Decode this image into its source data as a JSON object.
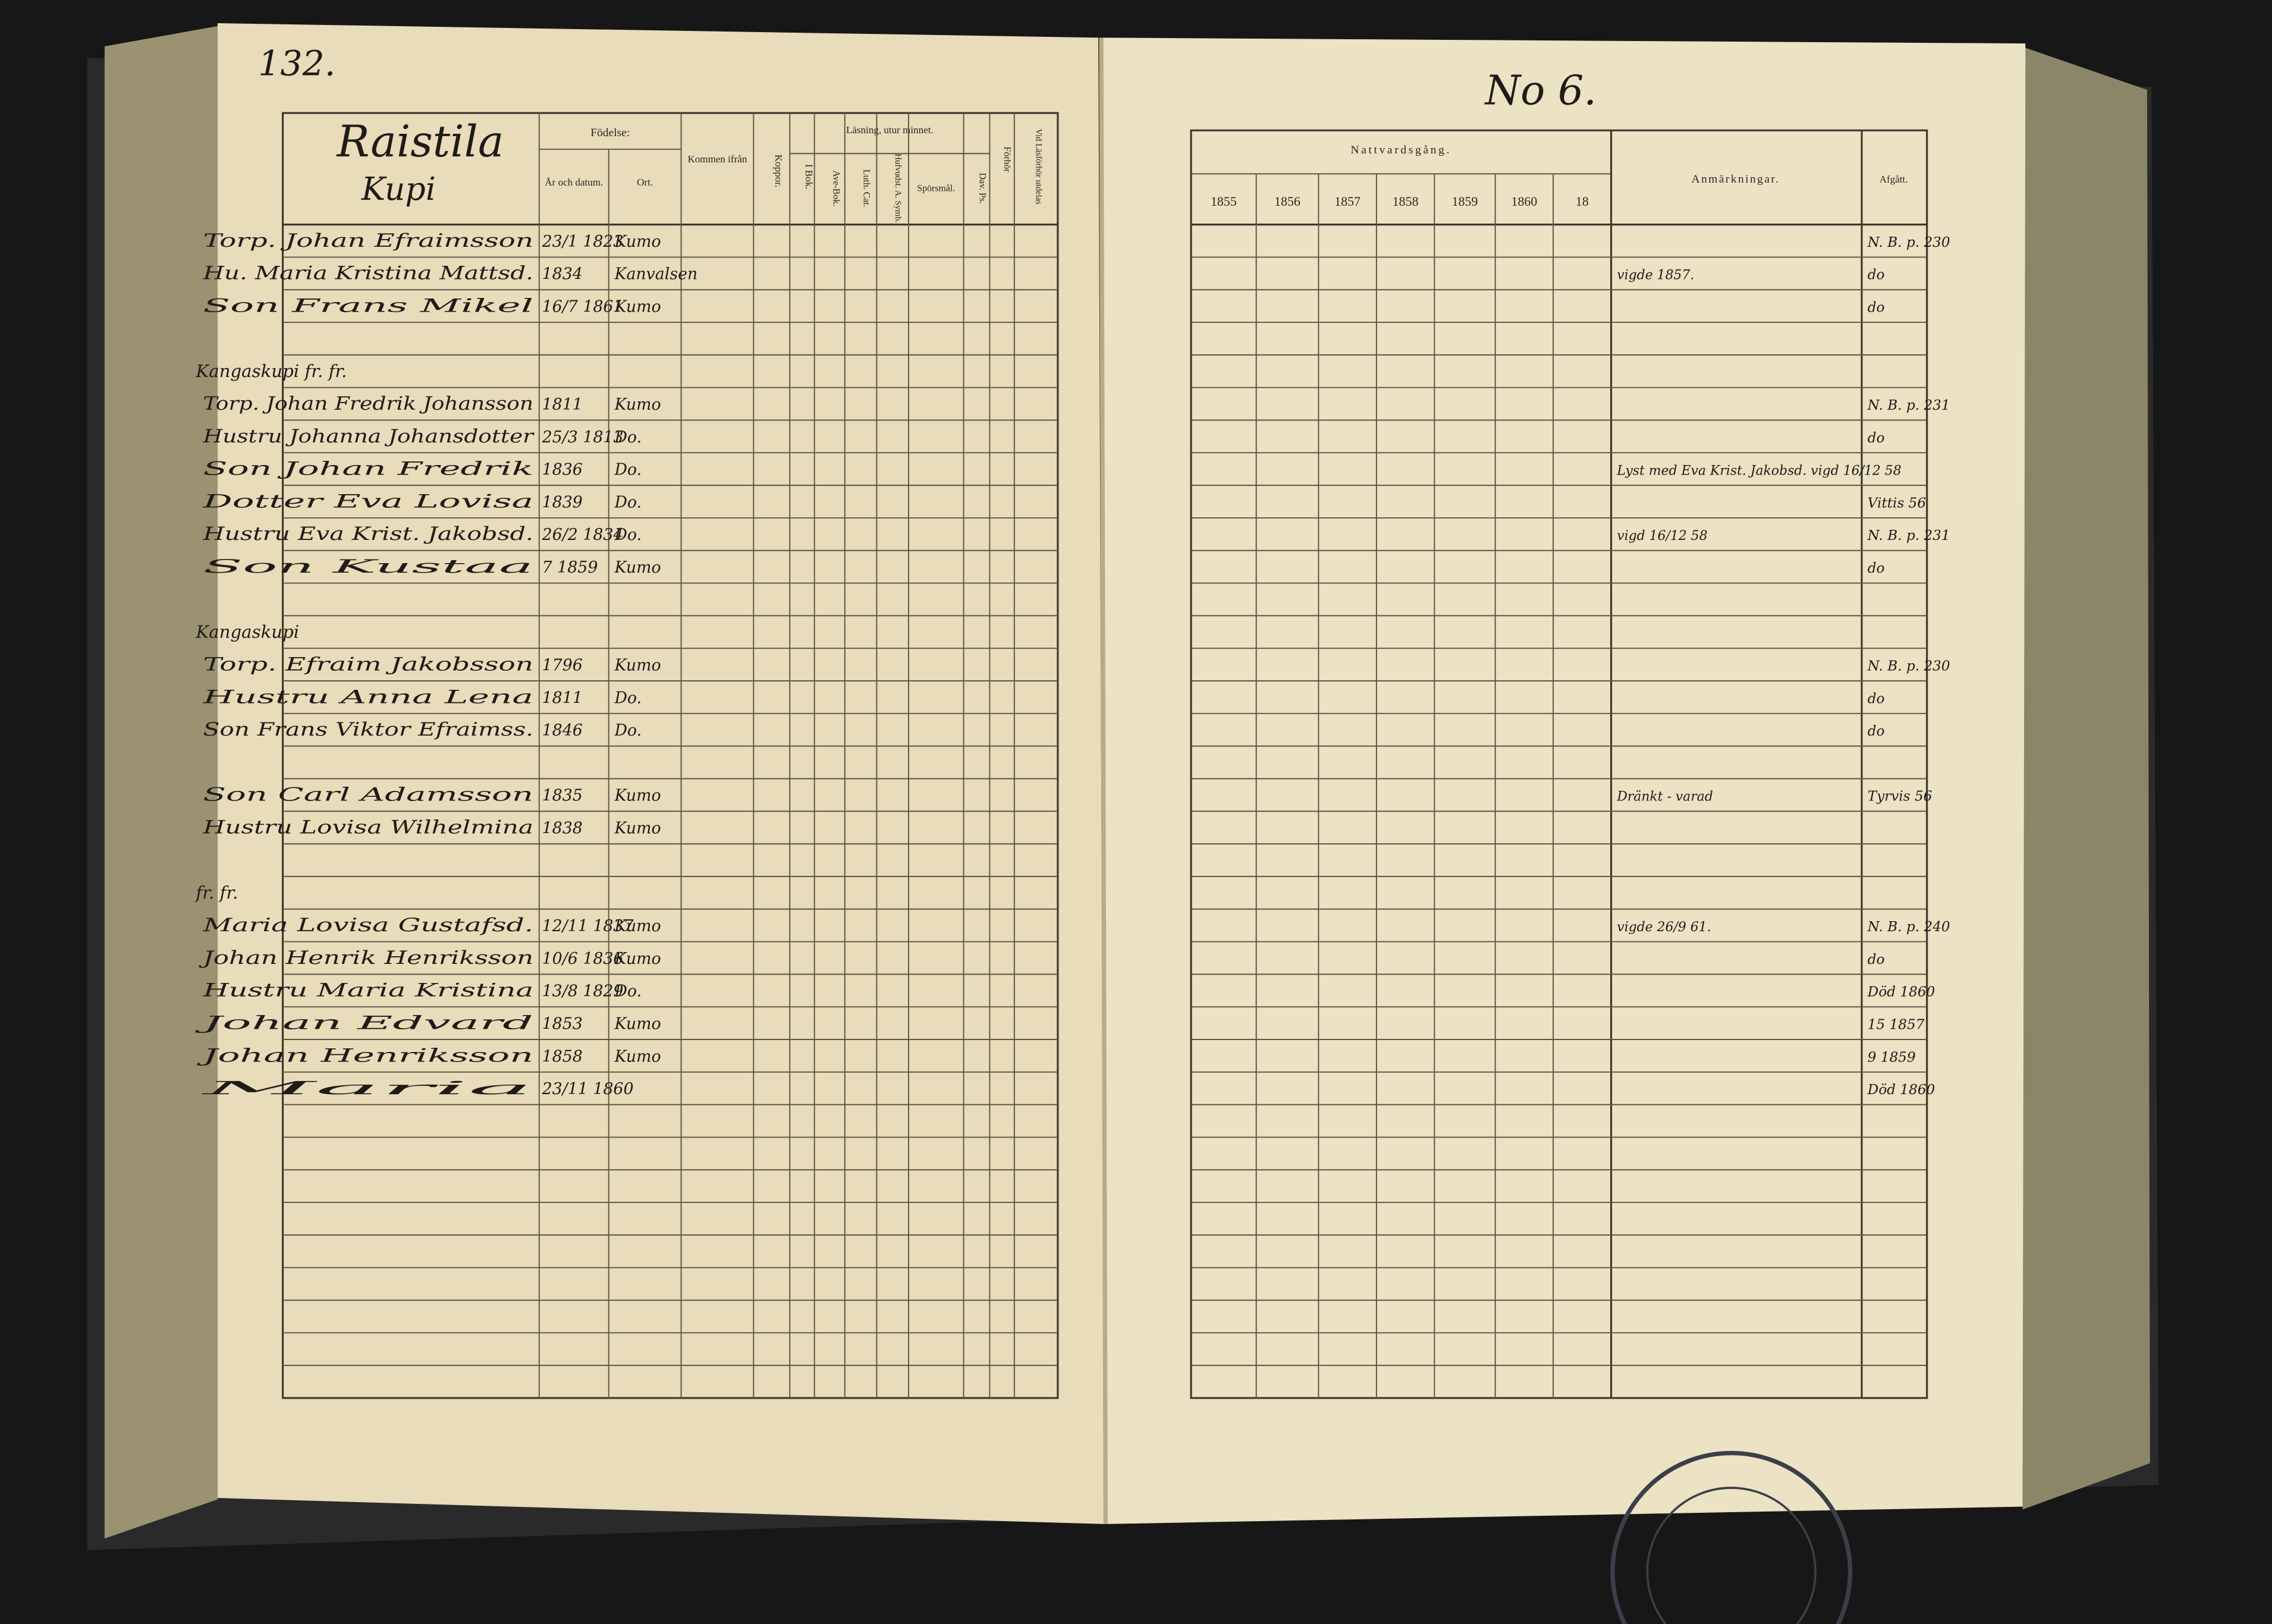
{
  "left_page": {
    "page_number": "132.",
    "place": "Raistila",
    "subplace": "Kupi",
    "headers": {
      "birth": "Födelse:",
      "birth_date": "År och datum.",
      "birth_place": "Ort.",
      "came_from": "Kommen ifrån",
      "smallpox": "Koppor.",
      "reading": "Läsning, utur minnet.",
      "book": "I Bok.",
      "abc": "Ave-Bok.",
      "catechism": "Luth. Cat.",
      "symbols": "Hufvudst. A. Symb.",
      "questions": "Spörsmål.",
      "psalms": "Dav. Ps.",
      "hearing": "Förhör",
      "given": "Vid Läsförhör utdelas"
    }
  },
  "right_page": {
    "number": "No 6.",
    "headers": {
      "communion": "Nattvardsgång.",
      "remarks": "Anmärkningar.",
      "departed": "Afgått."
    },
    "years": [
      "1855",
      "1856",
      "1857",
      "1858",
      "1859",
      "1860",
      "18"
    ]
  },
  "sections": [
    {
      "rows": [
        {
          "name": "Torp. Johan Efraimsson",
          "date": "23/1 1823",
          "place": "Kumo",
          "remark": "",
          "departed": "N. B. p. 230"
        },
        {
          "name": "Hu. Maria Kristina Mattsd.",
          "date": "1834",
          "place": "Kanvalsen",
          "remark": "vigde 1857.",
          "departed": "do"
        },
        {
          "name": "Son Frans Mikel",
          "date": "16/7 1861",
          "place": "Kumo",
          "remark": "",
          "departed": "do"
        }
      ]
    },
    {
      "heading": "Kangaskupi fr. fr.",
      "rows": [
        {
          "name": "Torp. Johan Fredrik Johansson",
          "date": "1811",
          "place": "Kumo",
          "remark": "",
          "departed": "N. B. p. 231"
        },
        {
          "name": "Hustru Johanna Johansdotter",
          "date": "25/3 1813",
          "place": "Do.",
          "remark": "",
          "departed": "do"
        },
        {
          "name": "Son Johan Fredrik",
          "date": "1836",
          "place": "Do.",
          "remark": "Lyst med Eva Krist. Jakobsd. vigd 16/12 58",
          "departed": ""
        },
        {
          "name": "Dotter Eva Lovisa",
          "date": "1839",
          "place": "Do.",
          "remark": "",
          "departed": "Vittis 56"
        },
        {
          "name": "Hustru Eva Krist. Jakobsd.",
          "date": "26/2 1834",
          "place": "Do.",
          "remark": "vigd 16/12 58",
          "departed": "N. B. p. 231"
        },
        {
          "name": "Son Kustaa",
          "date": "7 1859",
          "place": "Kumo",
          "remark": "",
          "departed": "do"
        }
      ]
    },
    {
      "heading": "Kangaskupi",
      "rows": [
        {
          "name": "Torp. Efraim Jakobsson",
          "date": "1796",
          "place": "Kumo",
          "remark": "",
          "departed": "N. B. p. 230"
        },
        {
          "name": "Hustru Anna Lena",
          "date": "1811",
          "place": "Do.",
          "remark": "",
          "departed": "do"
        },
        {
          "name": "Son Frans Viktor Efraimss.",
          "date": "1846",
          "place": "Do.",
          "remark": "",
          "departed": "do"
        }
      ]
    },
    {
      "rows": [
        {
          "name": "Son Carl Adamsson",
          "date": "1835",
          "place": "Kumo",
          "remark": "Dränkt - varad",
          "departed": "Tyrvis 56"
        },
        {
          "name": "Hustru Lovisa Wilhelmina",
          "date": "1838",
          "place": "Kumo",
          "remark": "",
          "departed": ""
        }
      ]
    },
    {
      "heading": "fr. fr.",
      "rows": [
        {
          "name": "Maria Lovisa Gustafsd.",
          "date": "12/11 1837",
          "place": "Kumo",
          "remark": "vigde 26/9 61.",
          "departed": "N. B. p. 240"
        },
        {
          "name": "Johan Henrik Henriksson",
          "date": "10/6 1836",
          "place": "Kumo",
          "remark": "",
          "departed": "do"
        },
        {
          "name": "Hustru Maria Kristina",
          "date": "13/8 1829",
          "place": "Do.",
          "remark": "",
          "departed": "Död 1860"
        },
        {
          "name": "Johan Edvard",
          "date": "1853",
          "place": "Kumo",
          "remark": "",
          "departed": "15 1857"
        },
        {
          "name": "Johan Henriksson",
          "date": "1858",
          "place": "Kumo",
          "remark": "",
          "departed": "9 1859"
        },
        {
          "name": "Maria",
          "date": "23/11 1860",
          "place": "",
          "remark": "",
          "departed": "Död 1860"
        }
      ]
    }
  ]
}
